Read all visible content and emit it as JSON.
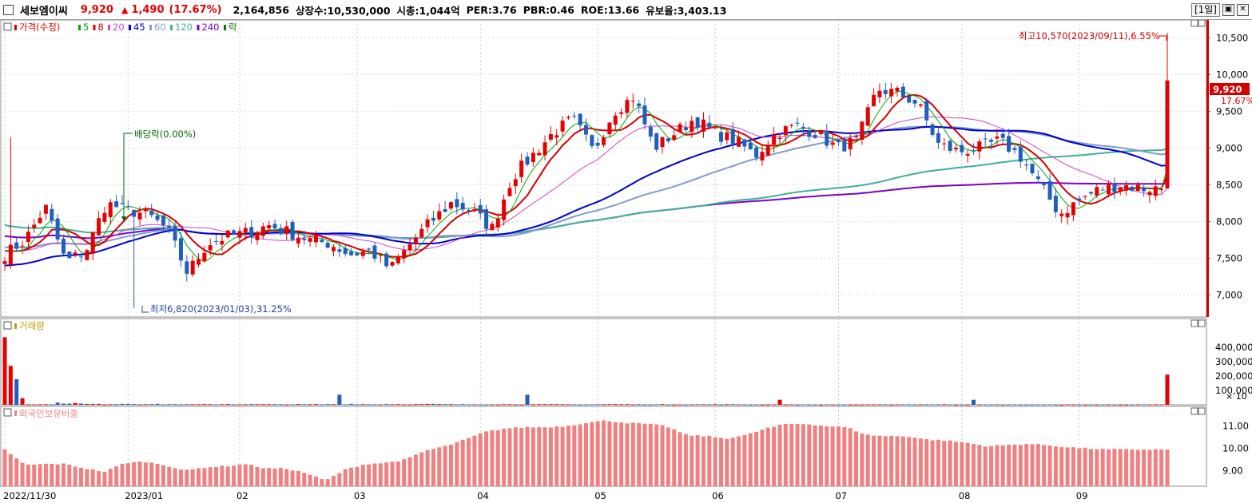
{
  "header": {
    "name": "세보엠이씨",
    "price": "9,920",
    "up_arrow": "▲",
    "change": "1,490",
    "change_pct": "(17.67%)",
    "volume": "2,164,856",
    "listed": "상장수:10,530,000",
    "mcap": "시총:1,044억",
    "per": "PER:3.76",
    "pbr": "PBR:0.46",
    "roe": "ROE:13.66",
    "reserve": "유보율:3,403.13",
    "period_button": "[1일]",
    "minimize_glyph": "▣",
    "close_glyph": "✕"
  },
  "price_panel": {
    "legend": [
      {
        "text": "가격(수정)",
        "color": "#d40000"
      },
      {
        "text": "5",
        "color": "#00aa00"
      },
      {
        "text": "8",
        "color": "#d40000"
      },
      {
        "text": "20",
        "color": "#cc44cc"
      },
      {
        "text": "45",
        "color": "#0000cc"
      },
      {
        "text": "60",
        "color": "#7f9ccf"
      },
      {
        "text": "120",
        "color": "#3fb09a"
      },
      {
        "text": "240",
        "color": "#7a00cc"
      },
      {
        "text": "락",
        "color": "#007700"
      }
    ],
    "y_ticks": [
      "10,500",
      "10,000",
      "9,500",
      "9,000",
      "8,500",
      "8,000",
      "7,500",
      "7,000"
    ],
    "high_note": "최고10,570(2023/09/11),6.55%",
    "low_note": "최저6,820(2023/01/03),31.25%",
    "dividend_note": "배당락(0.00%)",
    "current_price_tag": "9,920",
    "current_pct_tag": "17.67%"
  },
  "volume_panel": {
    "legend": "거래량",
    "y_ticks": [
      "400,000",
      "300,000",
      "200,000",
      "100,000"
    ],
    "unit": "× 10"
  },
  "foreign_panel": {
    "legend": "외국인보유비중",
    "y_ticks": [
      "11.00",
      "10.00",
      "9.00"
    ]
  },
  "x_axis": [
    "2022/11/30",
    "2023/01",
    "02",
    "03",
    "04",
    "05",
    "06",
    "07",
    "08",
    "09"
  ],
  "colors": {
    "up": "#e60000",
    "down": "#1f5fbf",
    "foreign_bar": "#f08080",
    "ma5": "#00aa00",
    "ma8": "#d40000",
    "ma20": "#cc44cc",
    "ma45": "#0000cc",
    "ma60": "#7f9ccf",
    "ma120": "#3fb09a",
    "ma240": "#7a00cc",
    "axis_bar": "#d40000"
  },
  "chart_data": {
    "type": "candlestick",
    "x_labels": [
      "2022/11/30",
      "2023/01",
      "02",
      "03",
      "04",
      "05",
      "06",
      "07",
      "08",
      "09"
    ],
    "price_range": [
      6700,
      10700
    ],
    "close_keyframes": [
      7550,
      7750,
      8200,
      7450,
      7600,
      8250,
      8150,
      8100,
      7900,
      7300,
      7700,
      7800,
      7850,
      7950,
      7850,
      7750,
      7700,
      7550,
      7600,
      7350,
      7700,
      8000,
      8250,
      8150,
      7900,
      8600,
      8900,
      9200,
      9400,
      8950,
      9500,
      9700,
      9000,
      9200,
      9400,
      9200,
      9100,
      8900,
      9200,
      9300,
      9200,
      9000,
      9100,
      9800,
      9750,
      9600,
      9050,
      8950,
      9000,
      9100,
      8900,
      8500,
      8100,
      8300,
      8450,
      8500,
      8450,
      8450,
      9920
    ],
    "volume_keyframes": [
      470000,
      4000,
      3000,
      15000,
      5000,
      4000,
      8000,
      5000,
      4000,
      3000,
      3000,
      5000,
      4000,
      3000,
      4000,
      3000,
      4000,
      6000,
      3000,
      5000,
      3000,
      5000,
      3000,
      3000,
      4000,
      3000,
      3000,
      3000,
      3000,
      3000,
      4000,
      3000,
      3000,
      3000,
      3000,
      3000,
      3000,
      2000,
      2000,
      2000,
      2000,
      2000,
      2000,
      2000,
      3000,
      3000,
      3000,
      2000,
      2000,
      2000,
      2000,
      2000,
      2000,
      2000,
      2000,
      2000,
      2000,
      2000,
      210000
    ],
    "foreign_keyframes": [
      9.95,
      9.25,
      9.3,
      9.3,
      9.1,
      8.95,
      9.35,
      9.4,
      9.25,
      9.0,
      9.15,
      9.2,
      9.3,
      9.1,
      9.1,
      8.9,
      8.55,
      9.05,
      9.3,
      9.35,
      9.5,
      9.9,
      10.1,
      10.4,
      10.75,
      10.9,
      10.95,
      10.95,
      11.0,
      11.15,
      11.25,
      11.15,
      11.1,
      11.0,
      10.6,
      10.55,
      10.45,
      10.6,
      10.9,
      11.1,
      11.1,
      11.0,
      10.95,
      10.6,
      10.55,
      10.55,
      10.4,
      10.35,
      10.25,
      10.1,
      10.15,
      10.2,
      10.15,
      10.05,
      10.0,
      9.95,
      9.95,
      9.95,
      9.95
    ],
    "foreign_range": [
      8.3,
      11.6
    ],
    "volume_range": [
      0,
      500000
    ],
    "high": 10570,
    "low": 6820,
    "last_close": 9920
  }
}
